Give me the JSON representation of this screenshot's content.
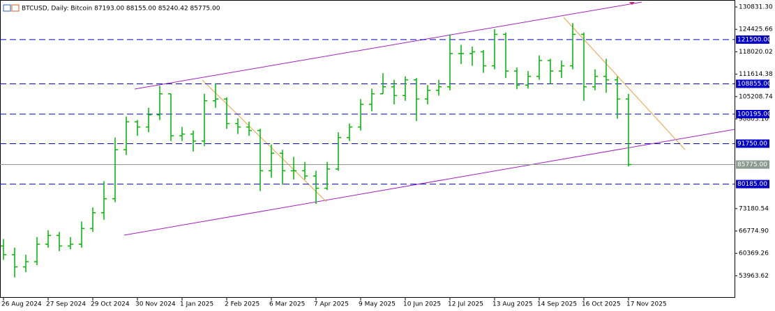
{
  "chart_data": {
    "type": "ohlc",
    "title": "BTCUSD, Daily:  Bitcoin  87193.00 88155.00 85240.42 85775.00",
    "color": "#00b400",
    "categories": [
      "26 Aug 2024",
      null,
      null,
      null,
      "27 Sep 2024",
      null,
      null,
      null,
      "29 Oct 2024",
      null,
      null,
      null,
      "30 Nov 2024",
      null,
      null,
      null,
      "1 Jan 2025",
      null,
      null,
      null,
      "2 Feb 2025",
      null,
      null,
      null,
      "6 Mar 2025",
      null,
      null,
      null,
      "7 Apr 2025",
      null,
      null,
      null,
      "9 May 2025",
      null,
      null,
      null,
      "10 Jun 2025",
      null,
      null,
      null,
      "12 Jul 2025",
      null,
      null,
      null,
      "13 Aug 2025",
      null,
      null,
      null,
      "14 Sep 2025",
      null,
      null,
      null,
      "16 Oct 2025",
      null,
      null,
      null,
      "17 Nov 2025"
    ],
    "open": [
      62500,
      60000,
      56500,
      58000,
      63000,
      65500,
      62500,
      63000,
      67500,
      72000,
      76000,
      90000,
      98000,
      96500,
      100000,
      106000,
      94000,
      94500,
      92500,
      104000,
      104500,
      97500,
      96500,
      95500,
      84000,
      89000,
      84000,
      84000,
      82500,
      79000,
      84500,
      93500,
      96500,
      103000,
      106000,
      108000,
      105500,
      110000,
      104500,
      107000,
      108000,
      117500,
      117500,
      118000,
      114000,
      123000,
      112500,
      108500,
      111000,
      115500,
      112500,
      114000,
      123000,
      108000,
      111000,
      110000,
      104500
    ],
    "high": [
      64500,
      62000,
      60000,
      65000,
      67000,
      66500,
      65000,
      69500,
      73500,
      81000,
      93500,
      99500,
      98500,
      102000,
      108300,
      106000,
      96500,
      95500,
      106000,
      109000,
      105000,
      99000,
      98000,
      96000,
      91500,
      90000,
      88000,
      86500,
      84000,
      86500,
      95000,
      97500,
      104500,
      107500,
      111900,
      110000,
      111000,
      110500,
      108500,
      110000,
      123000,
      120000,
      119500,
      118500,
      124500,
      123500,
      113500,
      112500,
      117000,
      116000,
      115500,
      126200,
      123500,
      113000,
      116000,
      111000,
      106000
    ],
    "low": [
      58500,
      53500,
      55000,
      57000,
      62000,
      61000,
      61500,
      62000,
      66500,
      70000,
      75000,
      88500,
      94000,
      95000,
      98500,
      92500,
      92500,
      89500,
      91000,
      102000,
      96000,
      94500,
      94000,
      78200,
      82000,
      80000,
      81500,
      81500,
      74500,
      78500,
      84000,
      92500,
      95500,
      101000,
      106000,
      103000,
      104000,
      98200,
      103000,
      105500,
      107000,
      114500,
      114000,
      112000,
      113000,
      110500,
      107300,
      107500,
      110000,
      108800,
      110500,
      113000,
      104000,
      107000,
      106300,
      98900,
      85240
    ],
    "close": [
      60000,
      56500,
      58000,
      63000,
      65500,
      62500,
      63000,
      67500,
      72000,
      76000,
      90000,
      98000,
      96500,
      100000,
      106000,
      94000,
      94500,
      92500,
      104000,
      104500,
      97500,
      96500,
      95500,
      84000,
      89000,
      84000,
      84000,
      82500,
      79000,
      84500,
      93500,
      96500,
      103000,
      106000,
      108000,
      105500,
      110000,
      104500,
      107000,
      108000,
      117500,
      117500,
      118000,
      114000,
      123000,
      112500,
      108500,
      111000,
      115500,
      112500,
      114000,
      123000,
      108000,
      111000,
      110000,
      104500,
      85775
    ],
    "ylim": [
      47680,
      132820
    ],
    "yticks": [
      {
        "value": 130831.3,
        "label": "130831.30"
      },
      124425.66,
      118020.02,
      111614.38,
      105208.74,
      {
        "value": 98803.1,
        "label": "98803.10"
      },
      73180.54,
      {
        "value": 66774.9,
        "label": "66774.90"
      },
      60369.26,
      53963.62
    ],
    "levels": [
      {
        "value": 121500,
        "label": "121500.00",
        "color": "#0000c8"
      },
      {
        "value": 108855,
        "label": "108855.00",
        "color": "#0000c8"
      },
      {
        "value": 100195,
        "label": "100195.00",
        "color": "#0000c8"
      },
      {
        "value": 91750,
        "label": "91750.00",
        "color": "#0000c8"
      },
      {
        "value": 85775,
        "label": "85775.00",
        "color": "#8a9a92"
      },
      {
        "value": 80185,
        "label": "80185.00",
        "color": "#0000c8"
      }
    ]
  }
}
